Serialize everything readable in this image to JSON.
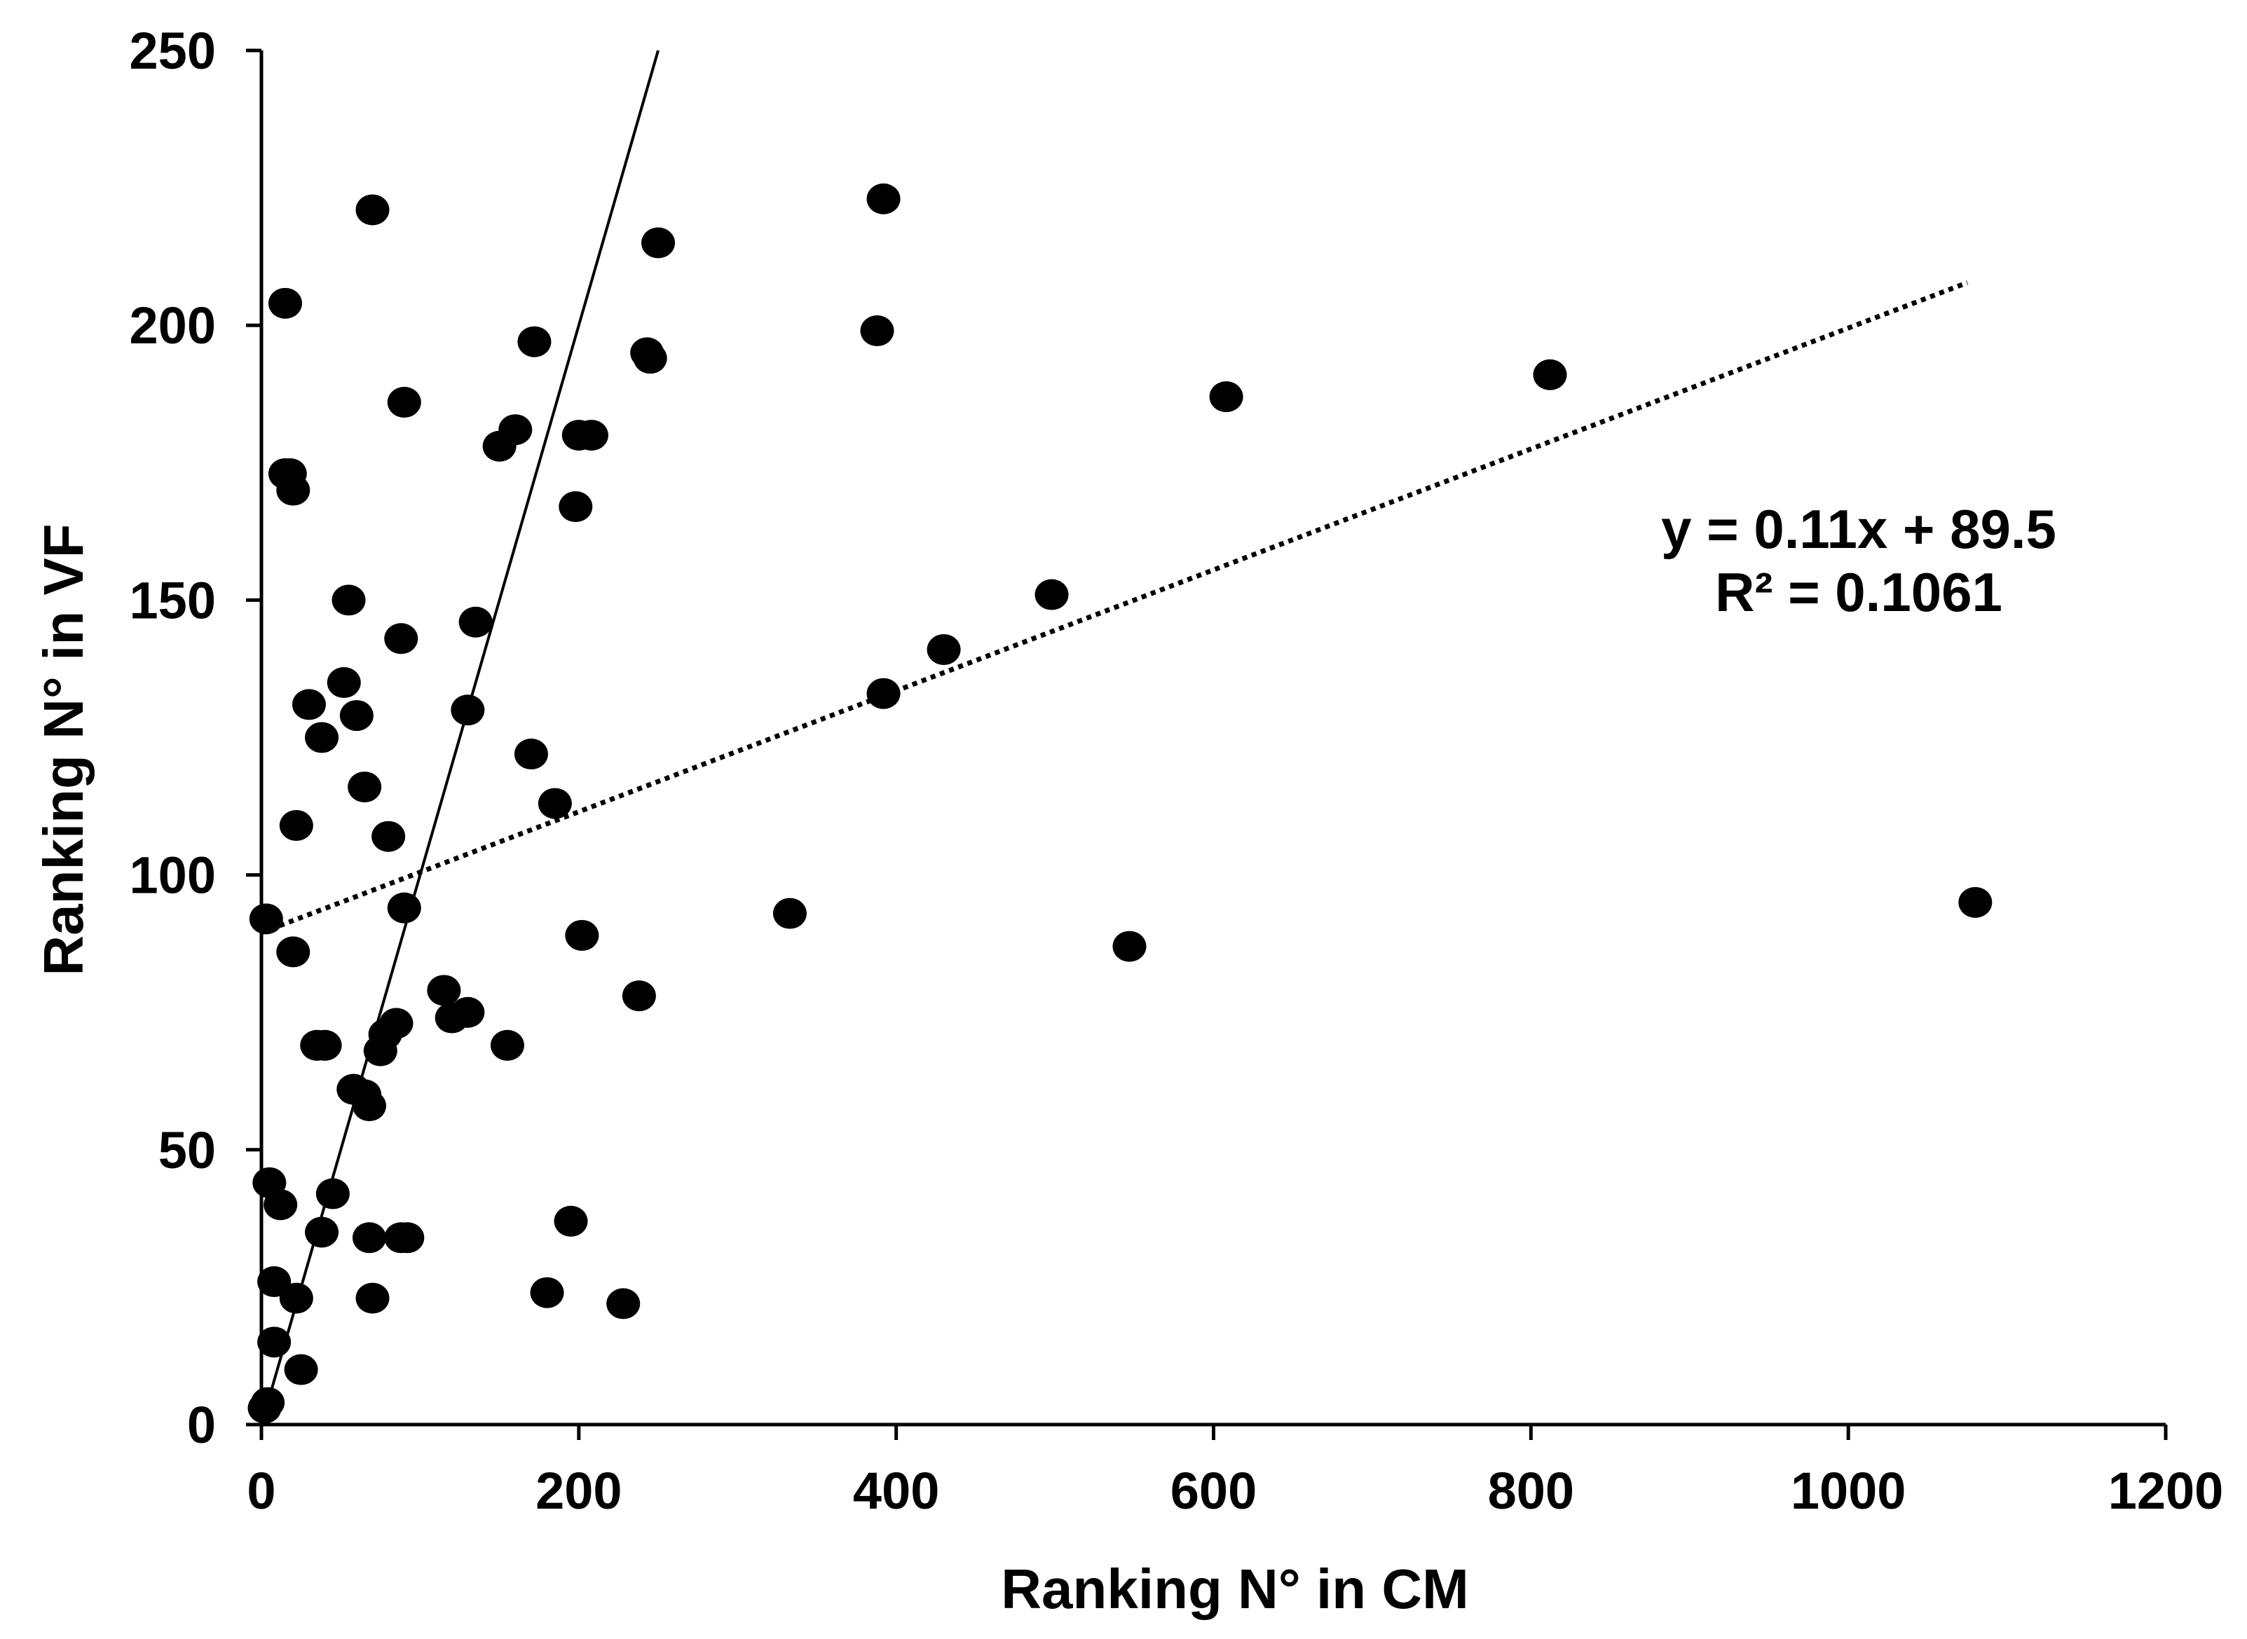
{
  "chart_data": {
    "type": "scatter",
    "title": "",
    "xlabel": "Ranking N° in CM",
    "ylabel": "Ranking N° in VF",
    "xlim": [
      0,
      1200
    ],
    "ylim": [
      0,
      250
    ],
    "x_ticks": [
      "0",
      "200",
      "400",
      "600",
      "800",
      "1000",
      "1200"
    ],
    "y_ticks": [
      "0",
      "50",
      "100",
      "150",
      "200",
      "250"
    ],
    "grid": false,
    "legend": "none",
    "marker_color": "#000000",
    "points": [
      [
        2,
        3
      ],
      [
        4,
        4
      ],
      [
        3,
        92
      ],
      [
        5,
        44
      ],
      [
        8,
        26
      ],
      [
        8,
        15
      ],
      [
        12,
        40
      ],
      [
        15,
        204
      ],
      [
        15,
        173
      ],
      [
        18,
        173
      ],
      [
        20,
        170
      ],
      [
        20,
        86
      ],
      [
        22,
        23
      ],
      [
        22,
        109
      ],
      [
        25,
        10
      ],
      [
        30,
        131
      ],
      [
        35,
        69
      ],
      [
        38,
        125
      ],
      [
        38,
        35
      ],
      [
        40,
        69
      ],
      [
        45,
        42
      ],
      [
        52,
        135
      ],
      [
        55,
        150
      ],
      [
        58,
        61
      ],
      [
        60,
        129
      ],
      [
        65,
        116
      ],
      [
        65,
        60
      ],
      [
        68,
        58
      ],
      [
        68,
        34
      ],
      [
        70,
        23
      ],
      [
        70,
        221
      ],
      [
        75,
        68
      ],
      [
        78,
        71
      ],
      [
        80,
        107
      ],
      [
        85,
        73
      ],
      [
        88,
        143
      ],
      [
        88,
        34
      ],
      [
        90,
        186
      ],
      [
        90,
        94
      ],
      [
        92,
        34
      ],
      [
        115,
        79
      ],
      [
        120,
        74
      ],
      [
        130,
        75
      ],
      [
        130,
        130
      ],
      [
        135,
        146
      ],
      [
        150,
        178
      ],
      [
        155,
        69
      ],
      [
        160,
        181
      ],
      [
        170,
        122
      ],
      [
        172,
        197
      ],
      [
        180,
        24
      ],
      [
        185,
        113
      ],
      [
        195,
        37
      ],
      [
        198,
        167
      ],
      [
        200,
        180
      ],
      [
        202,
        89
      ],
      [
        208,
        180
      ],
      [
        228,
        22
      ],
      [
        238,
        78
      ],
      [
        243,
        195
      ],
      [
        245,
        194
      ],
      [
        250,
        215
      ],
      [
        333,
        93
      ],
      [
        388,
        199
      ],
      [
        392,
        133
      ],
      [
        392,
        223
      ],
      [
        430,
        141
      ],
      [
        498,
        151
      ],
      [
        547,
        87
      ],
      [
        608,
        187
      ],
      [
        812,
        191
      ],
      [
        1080,
        95
      ]
    ],
    "trendline": {
      "style": "dotted",
      "x_start": 0,
      "x_end": 1075,
      "slope": 0.11,
      "intercept": 89.5,
      "equation": "y = 0.11x + 89.5",
      "r2_label": "R² = 0.1061"
    },
    "reference_line": {
      "style": "solid",
      "x1": 0,
      "y1": 0,
      "x2": 250,
      "y2": 250
    }
  }
}
